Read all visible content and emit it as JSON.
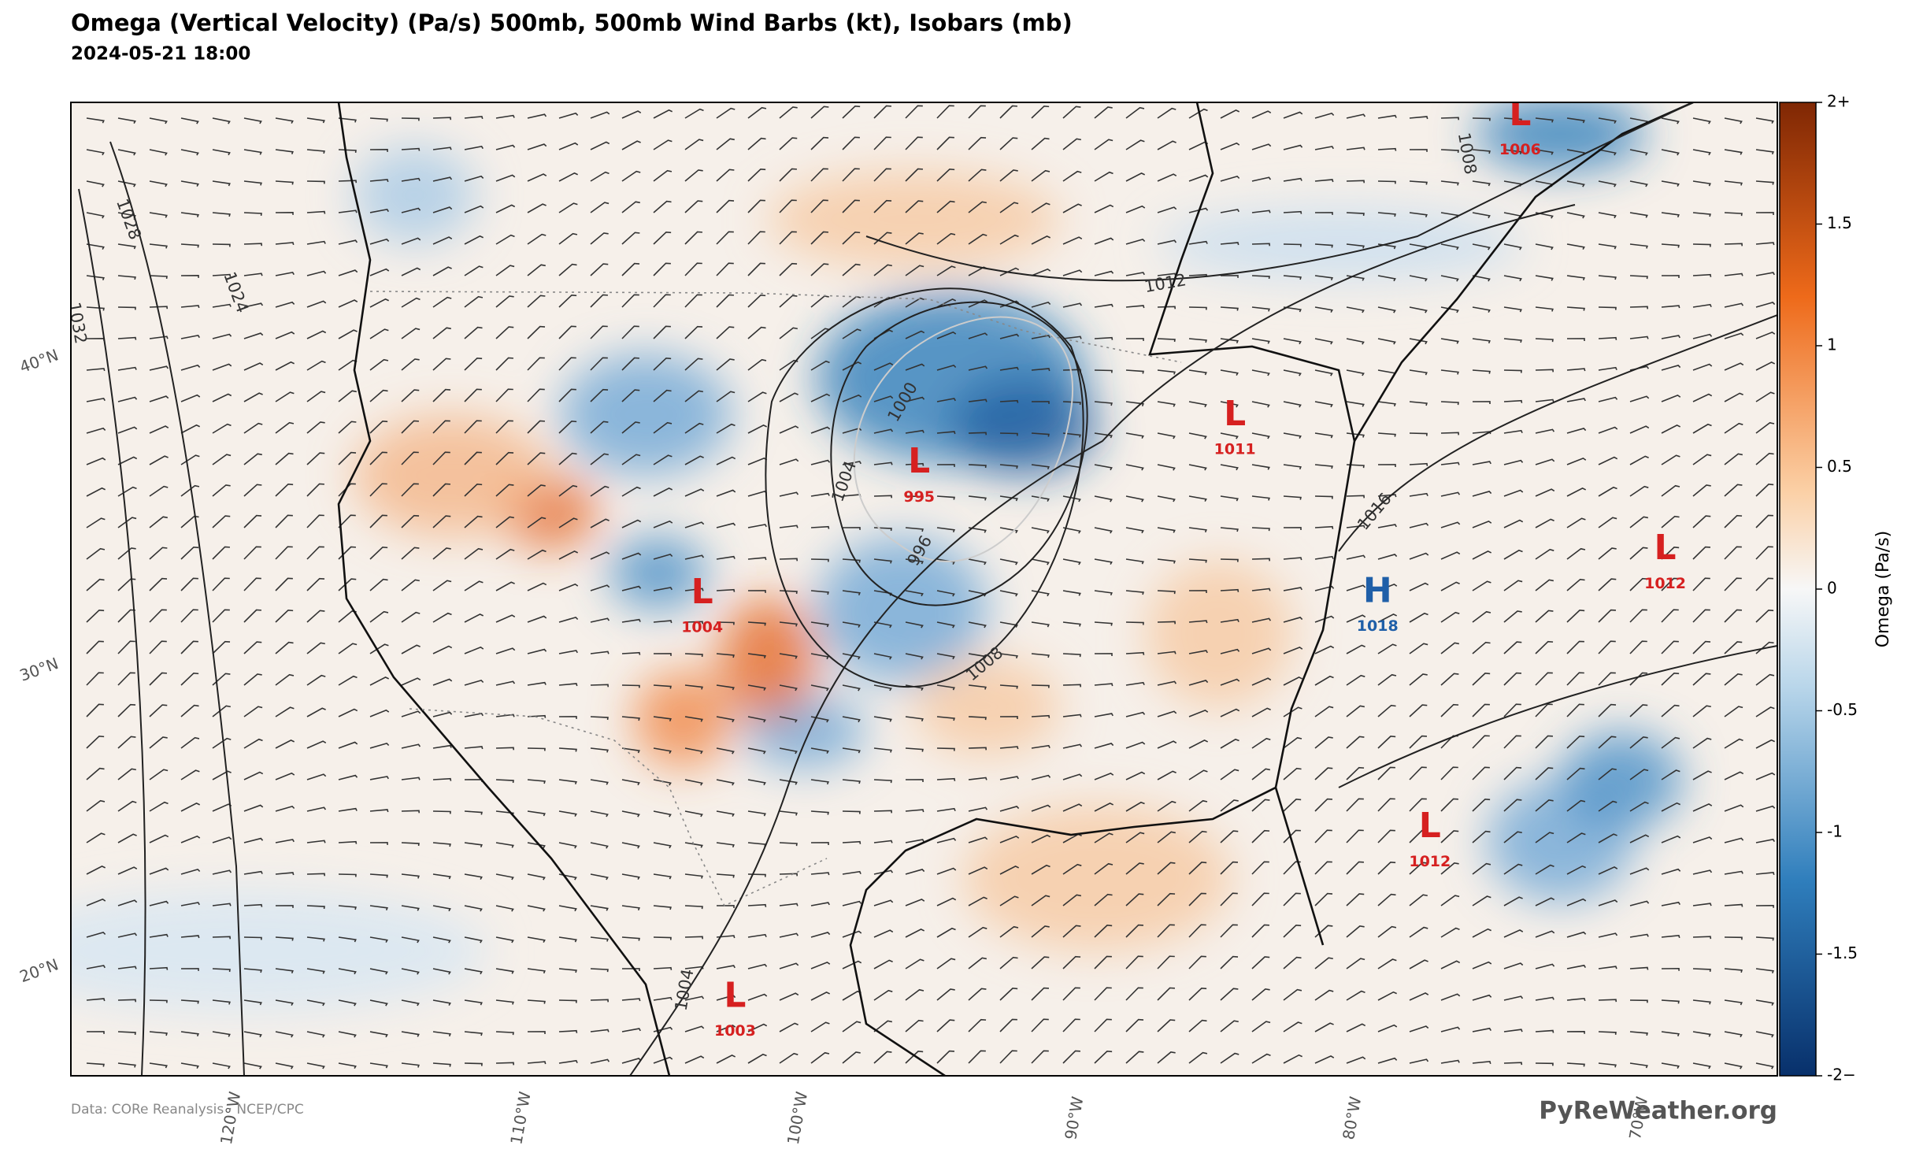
{
  "header": {
    "title": "Omega (Vertical Velocity) (Pa/s)  500mb, 500mb Wind Barbs (kt), Isobars (mb)",
    "subtitle": "2024-05-21 18:00"
  },
  "map": {
    "lat_labels": [
      "40°N",
      "30°N",
      "20°N"
    ],
    "lon_labels": [
      "120°W",
      "110°W",
      "100°W",
      "90°W",
      "80°W",
      "70°W"
    ],
    "pressure_centers": [
      {
        "type": "L",
        "pressure": 995
      },
      {
        "type": "L",
        "pressure": 1004
      },
      {
        "type": "L",
        "pressure": 1011
      },
      {
        "type": "L",
        "pressure": 1006
      },
      {
        "type": "L",
        "pressure": 1012
      },
      {
        "type": "H",
        "pressure": 1018
      },
      {
        "type": "L",
        "pressure": 1012
      },
      {
        "type": "L",
        "pressure": 1003
      }
    ],
    "isobar_labels": [
      1012,
      1008,
      1004,
      1000,
      996,
      1016,
      1008,
      1024,
      1028,
      1032,
      1004
    ]
  },
  "colorbar": {
    "label": "Omega (Pa/s)",
    "lim": [
      -2,
      2
    ],
    "ticks": [
      {
        "value": 2,
        "label": "2+"
      },
      1.5,
      1,
      0.5,
      0,
      -0.5,
      -1,
      -1.5,
      {
        "value": -2,
        "label": "-2−"
      }
    ]
  },
  "footer": {
    "source": "Data: CORe Reanalysis  ·  NCEP/CPC",
    "brand": "PyReWeather.org"
  }
}
